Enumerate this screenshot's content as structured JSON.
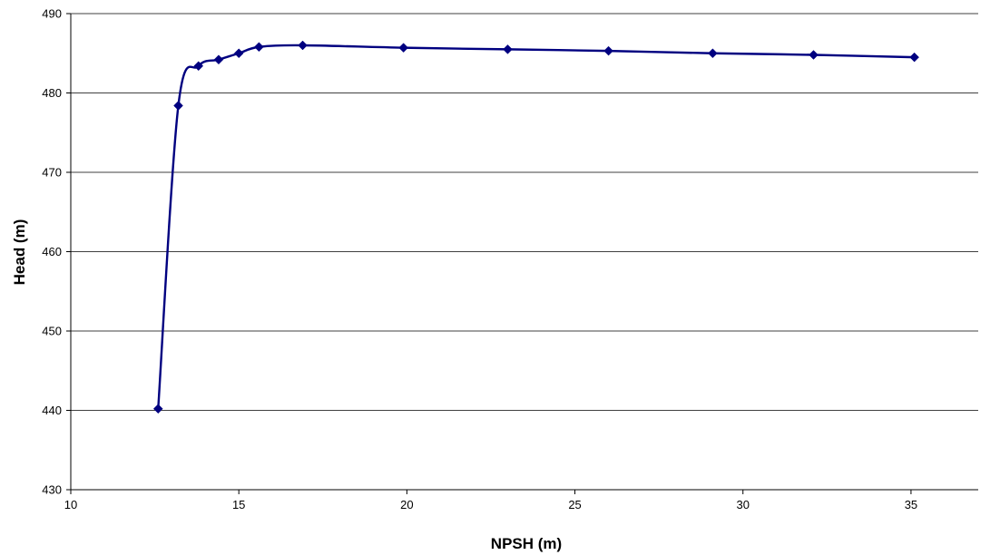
{
  "chart_data": {
    "type": "line",
    "title": "",
    "xlabel": "NPSH (m)",
    "ylabel": "Head (m)",
    "xlim": [
      10,
      37
    ],
    "ylim": [
      430,
      490
    ],
    "xticks": [
      10,
      15,
      20,
      25,
      30,
      35
    ],
    "yticks": [
      430,
      440,
      450,
      460,
      470,
      480,
      490
    ],
    "grid": "horizontal",
    "legend": "none",
    "series": [
      {
        "marker": "diamond",
        "color": "#000080",
        "x": [
          12.6,
          13.2,
          13.8,
          14.4,
          15.0,
          15.6,
          16.9,
          19.9,
          23.0,
          26.0,
          29.1,
          32.1,
          35.1
        ],
        "y": [
          440.2,
          478.4,
          483.4,
          484.2,
          485.0,
          485.8,
          486.0,
          485.7,
          485.5,
          485.3,
          485.0,
          484.8,
          484.5
        ]
      }
    ]
  }
}
